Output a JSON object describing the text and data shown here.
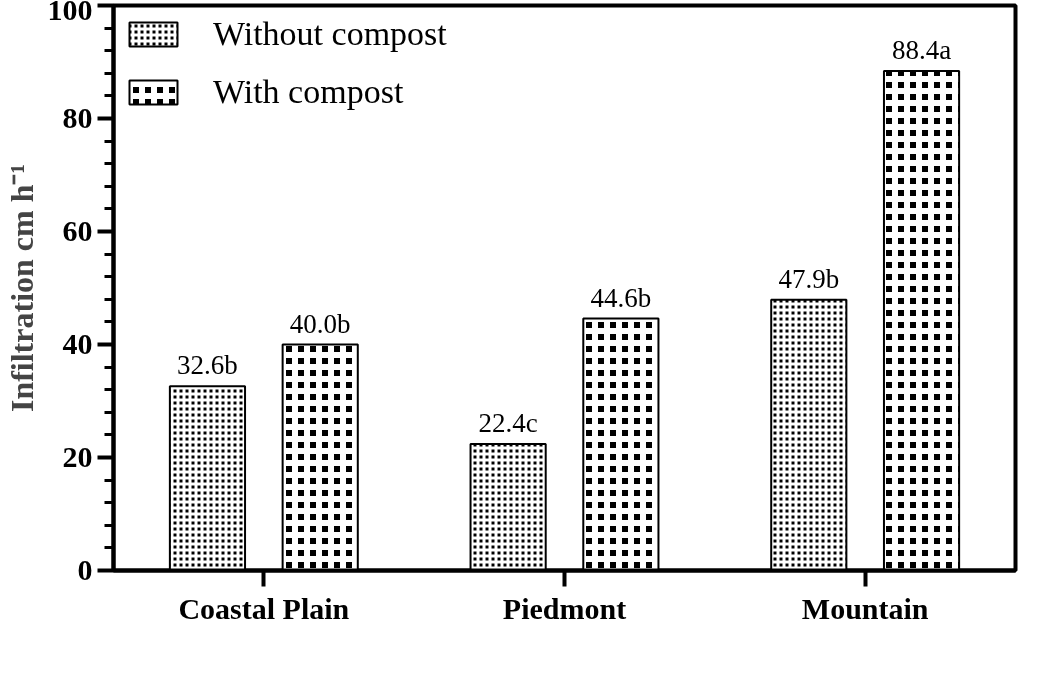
{
  "chart_data": {
    "type": "bar",
    "ylabel": "Infiltration cm h⁻¹",
    "categories": [
      "Coastal Plain",
      "Piedmont",
      "Mountain"
    ],
    "series": [
      {
        "name": "Without compost",
        "color": "#000000",
        "values": [
          32.6,
          22.4,
          47.9
        ],
        "value_labels": [
          "32.6b",
          "22.4c",
          "47.9b"
        ]
      },
      {
        "name": "With compost",
        "color": "#000000",
        "values": [
          40.0,
          44.6,
          88.4
        ],
        "value_labels": [
          "40.0b",
          "44.6b",
          "88.4a"
        ]
      }
    ],
    "ylim": [
      0,
      100
    ],
    "yticks": [
      0,
      20,
      40,
      60,
      80,
      100
    ],
    "grid": false,
    "legend": "top left"
  }
}
